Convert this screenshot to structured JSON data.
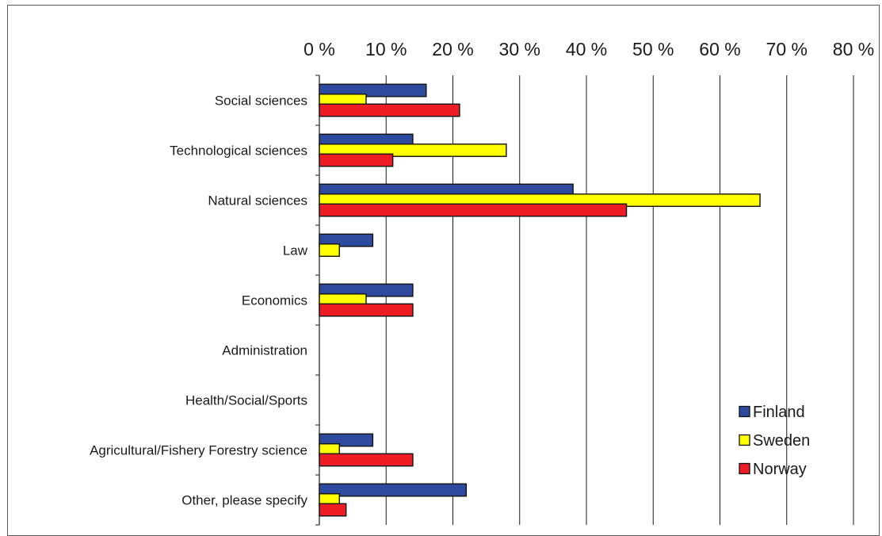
{
  "chart_data": {
    "type": "bar",
    "orientation": "horizontal",
    "x_axis_position": "top",
    "xlim": [
      0,
      80
    ],
    "xtick_labels": [
      "0 %",
      "10 %",
      "20 %",
      "30 %",
      "40 %",
      "50 %",
      "60 %",
      "70 %",
      "80 %"
    ],
    "categories": [
      "Social sciences",
      "Technological sciences",
      "Natural sciences",
      "Law",
      "Economics",
      "Administration",
      "Health/Social/Sports",
      "Agricultural/Fishery Forestry science",
      "Other, please specify"
    ],
    "series": [
      {
        "name": "Finland",
        "color": "#2e4a9e",
        "values": [
          16,
          14,
          38,
          8,
          14,
          0,
          0,
          8,
          22
        ]
      },
      {
        "name": "Sweden",
        "color": "#ffff00",
        "values": [
          7,
          28,
          66,
          3,
          7,
          0,
          0,
          3,
          3
        ]
      },
      {
        "name": "Norway",
        "color": "#ee1c24",
        "values": [
          21,
          11,
          46,
          0,
          14,
          0,
          0,
          14,
          4
        ]
      }
    ],
    "grid": true,
    "legend_position": "bottom-right"
  }
}
